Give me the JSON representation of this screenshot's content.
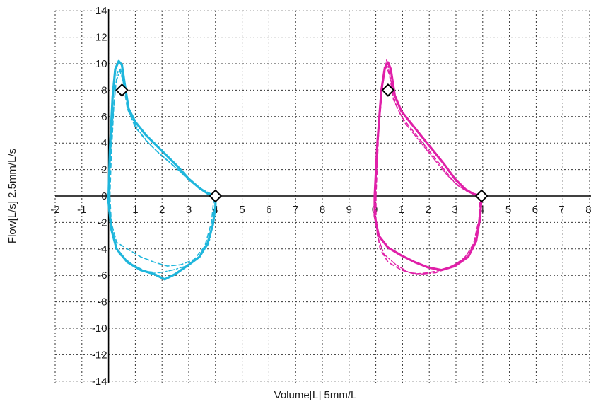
{
  "chart_data": {
    "type": "line",
    "xlabel": "Volume[L] 5mm/L",
    "ylabel": "Flow[L/s] 2.5mm/L/s",
    "xlim": [
      -2,
      8
    ],
    "ylim": [
      -14,
      14
    ],
    "grid": true,
    "left_panel": {
      "x_ticks": [
        "-2",
        "-1",
        "1",
        "2",
        "3",
        "4",
        "5",
        "6",
        "7",
        "8",
        "9"
      ],
      "color": "#1fb6dc",
      "markers": [
        {
          "x": 0.5,
          "y": 8.0
        },
        {
          "x": 4.0,
          "y": 0.0
        }
      ],
      "series": [
        {
          "style": "solid",
          "points": [
            [
              0,
              0
            ],
            [
              0.05,
              3.5
            ],
            [
              0.15,
              7.5
            ],
            [
              0.25,
              9.6
            ],
            [
              0.38,
              10.2
            ],
            [
              0.5,
              9.9
            ],
            [
              0.6,
              8.5
            ],
            [
              0.75,
              6.6
            ],
            [
              1.0,
              5.6
            ],
            [
              1.4,
              4.6
            ],
            [
              1.8,
              3.8
            ],
            [
              2.2,
              3.0
            ],
            [
              2.6,
              2.2
            ],
            [
              3.0,
              1.3
            ],
            [
              3.4,
              0.6
            ],
            [
              3.7,
              0.2
            ],
            [
              4.0,
              0.0
            ],
            [
              4.0,
              -0.8
            ],
            [
              3.9,
              -2.2
            ],
            [
              3.7,
              -3.6
            ],
            [
              3.4,
              -4.6
            ],
            [
              3.0,
              -5.2
            ],
            [
              2.5,
              -5.9
            ],
            [
              2.1,
              -6.3
            ],
            [
              1.7,
              -5.9
            ],
            [
              1.2,
              -5.6
            ],
            [
              0.7,
              -5.0
            ],
            [
              0.3,
              -4.0
            ],
            [
              0.1,
              -2.5
            ],
            [
              0,
              -0.5
            ],
            [
              0,
              0
            ]
          ]
        },
        {
          "style": "dashed",
          "points": [
            [
              0.05,
              0
            ],
            [
              0.1,
              3.0
            ],
            [
              0.2,
              7.0
            ],
            [
              0.32,
              9.3
            ],
            [
              0.45,
              9.6
            ],
            [
              0.55,
              8.6
            ],
            [
              0.7,
              6.6
            ],
            [
              1.0,
              5.2
            ],
            [
              1.4,
              4.2
            ],
            [
              1.8,
              3.4
            ],
            [
              2.2,
              2.7
            ],
            [
              2.6,
              2.0
            ],
            [
              3.0,
              1.2
            ],
            [
              3.4,
              0.6
            ],
            [
              3.7,
              0.2
            ],
            [
              3.95,
              0
            ],
            [
              3.85,
              -2.0
            ],
            [
              3.6,
              -3.8
            ],
            [
              3.2,
              -4.8
            ],
            [
              2.7,
              -5.2
            ],
            [
              2.2,
              -5.3
            ],
            [
              1.7,
              -5.0
            ],
            [
              1.2,
              -4.6
            ],
            [
              0.7,
              -4.0
            ],
            [
              0.3,
              -3.5
            ],
            [
              0.1,
              -2.0
            ],
            [
              0.05,
              0
            ]
          ]
        },
        {
          "style": "dashdot",
          "points": [
            [
              0,
              0
            ],
            [
              0.12,
              5.0
            ],
            [
              0.28,
              8.6
            ],
            [
              0.42,
              9.5
            ],
            [
              0.58,
              8.4
            ],
            [
              0.8,
              6.2
            ],
            [
              1.1,
              5.0
            ],
            [
              1.5,
              4.0
            ],
            [
              1.9,
              3.2
            ],
            [
              2.3,
              2.5
            ],
            [
              2.7,
              1.8
            ],
            [
              3.1,
              1.1
            ],
            [
              3.5,
              0.5
            ],
            [
              3.8,
              0.2
            ],
            [
              4.0,
              0
            ],
            [
              3.95,
              -1.8
            ],
            [
              3.75,
              -3.6
            ],
            [
              3.4,
              -4.6
            ],
            [
              2.9,
              -5.3
            ],
            [
              2.4,
              -5.6
            ],
            [
              1.9,
              -5.8
            ],
            [
              1.4,
              -5.7
            ],
            [
              0.9,
              -5.2
            ],
            [
              0.4,
              -4.4
            ],
            [
              0.15,
              -3.0
            ],
            [
              0,
              -1.0
            ],
            [
              0,
              0
            ]
          ]
        }
      ]
    },
    "right_panel": {
      "x_ticks": [
        "0",
        "1",
        "2",
        "3",
        "4",
        "5",
        "6",
        "7",
        "8"
      ],
      "color": "#e020a8",
      "markers": [
        {
          "x": 0.5,
          "y": 8.0
        },
        {
          "x": 4.0,
          "y": 0.0
        }
      ],
      "series": [
        {
          "style": "solid",
          "points": [
            [
              0,
              0
            ],
            [
              0.1,
              4.0
            ],
            [
              0.25,
              8.0
            ],
            [
              0.38,
              9.7
            ],
            [
              0.5,
              10.1
            ],
            [
              0.6,
              9.6
            ],
            [
              0.75,
              7.6
            ],
            [
              1.0,
              6.4
            ],
            [
              1.4,
              5.4
            ],
            [
              1.8,
              4.4
            ],
            [
              2.2,
              3.4
            ],
            [
              2.6,
              2.4
            ],
            [
              3.0,
              1.3
            ],
            [
              3.4,
              0.5
            ],
            [
              3.7,
              0.15
            ],
            [
              4.0,
              0
            ],
            [
              3.95,
              -1.5
            ],
            [
              3.8,
              -3.4
            ],
            [
              3.5,
              -4.6
            ],
            [
              3.0,
              -5.3
            ],
            [
              2.5,
              -5.6
            ],
            [
              2.0,
              -5.4
            ],
            [
              1.5,
              -5.0
            ],
            [
              1.0,
              -4.5
            ],
            [
              0.5,
              -3.9
            ],
            [
              0.15,
              -3.0
            ],
            [
              0,
              -1.5
            ],
            [
              0,
              0
            ]
          ]
        },
        {
          "style": "dashed",
          "points": [
            [
              0.05,
              0
            ],
            [
              0.15,
              5.0
            ],
            [
              0.3,
              8.4
            ],
            [
              0.42,
              9.8
            ],
            [
              0.55,
              9.2
            ],
            [
              0.7,
              7.3
            ],
            [
              1.0,
              6.0
            ],
            [
              1.4,
              5.0
            ],
            [
              1.8,
              4.0
            ],
            [
              2.2,
              3.0
            ],
            [
              2.6,
              2.0
            ],
            [
              3.0,
              1.0
            ],
            [
              3.4,
              0.4
            ],
            [
              3.75,
              0.1
            ],
            [
              3.95,
              0
            ],
            [
              3.9,
              -1.8
            ],
            [
              3.7,
              -3.6
            ],
            [
              3.4,
              -4.6
            ],
            [
              3.0,
              -5.2
            ],
            [
              2.5,
              -5.6
            ],
            [
              2.0,
              -5.8
            ],
            [
              1.5,
              -5.9
            ],
            [
              1.0,
              -5.6
            ],
            [
              0.5,
              -5.0
            ],
            [
              0.2,
              -4.0
            ],
            [
              0.05,
              -2.0
            ],
            [
              0.05,
              0
            ]
          ]
        },
        {
          "style": "dashdot",
          "points": [
            [
              0,
              0
            ],
            [
              0.12,
              4.5
            ],
            [
              0.28,
              8.6
            ],
            [
              0.45,
              10.3
            ],
            [
              0.58,
              9.0
            ],
            [
              0.78,
              7.0
            ],
            [
              1.1,
              5.6
            ],
            [
              1.5,
              4.6
            ],
            [
              1.9,
              3.6
            ],
            [
              2.3,
              2.6
            ],
            [
              2.7,
              1.6
            ],
            [
              3.1,
              0.8
            ],
            [
              3.5,
              0.3
            ],
            [
              3.8,
              0.05
            ],
            [
              4.0,
              0
            ],
            [
              3.95,
              -2.0
            ],
            [
              3.7,
              -3.8
            ],
            [
              3.3,
              -4.8
            ],
            [
              2.8,
              -5.4
            ],
            [
              2.3,
              -5.8
            ],
            [
              1.8,
              -5.9
            ],
            [
              1.3,
              -5.8
            ],
            [
              0.8,
              -5.2
            ],
            [
              0.35,
              -4.4
            ],
            [
              0.1,
              -3.0
            ],
            [
              0,
              -1.0
            ],
            [
              0,
              0
            ]
          ]
        }
      ]
    }
  }
}
